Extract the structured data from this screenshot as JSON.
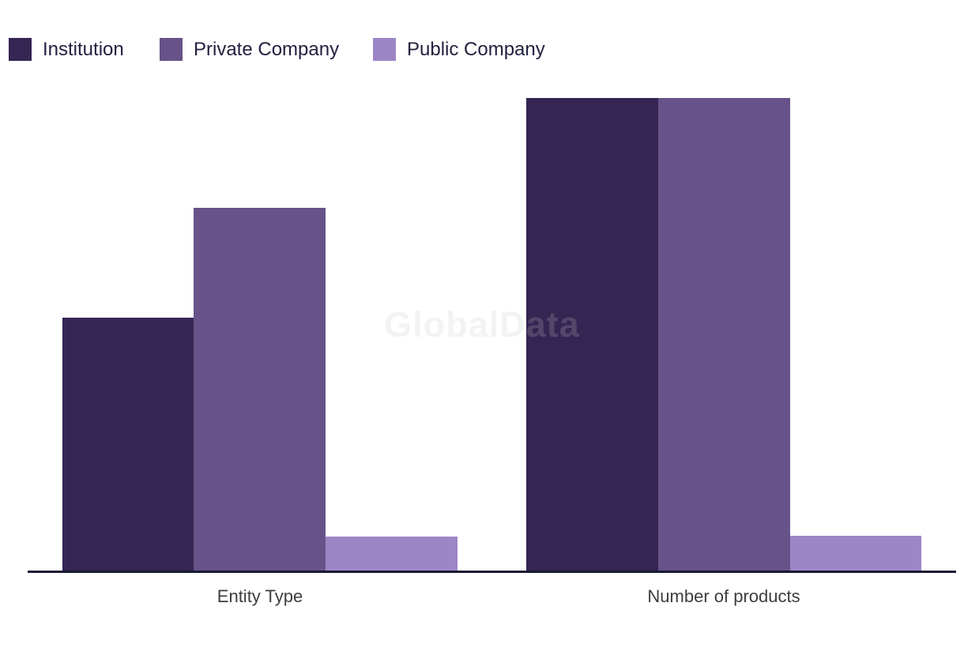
{
  "watermark": "GlobalData",
  "colors": {
    "background": "#ffffff",
    "axis_line": "#1a1a33",
    "category_label_text": "#3d3d3d",
    "legend_text": "#222140",
    "watermark_text": "#c8c8c8"
  },
  "chart_data": {
    "type": "bar",
    "title": "",
    "xlabel": "",
    "ylabel": "",
    "categories": [
      "Entity Type",
      "Number of products"
    ],
    "series": [
      {
        "name": "Institution",
        "color": "#342553",
        "values": [
          53.5,
          100
        ]
      },
      {
        "name": "Private Company",
        "color": "#675389",
        "values": [
          76.8,
          100
        ]
      },
      {
        "name": "Public Company",
        "color": "#9d86c6",
        "values": [
          7.2,
          7.3
        ]
      }
    ],
    "ylim": [
      0,
      100
    ],
    "y_axis_visible": false,
    "gridlines": false,
    "legend_position": "top-left",
    "value_units": "relative height, % of tallest bar (no y-axis labels shown in chart)",
    "watermark": "GlobalData"
  }
}
